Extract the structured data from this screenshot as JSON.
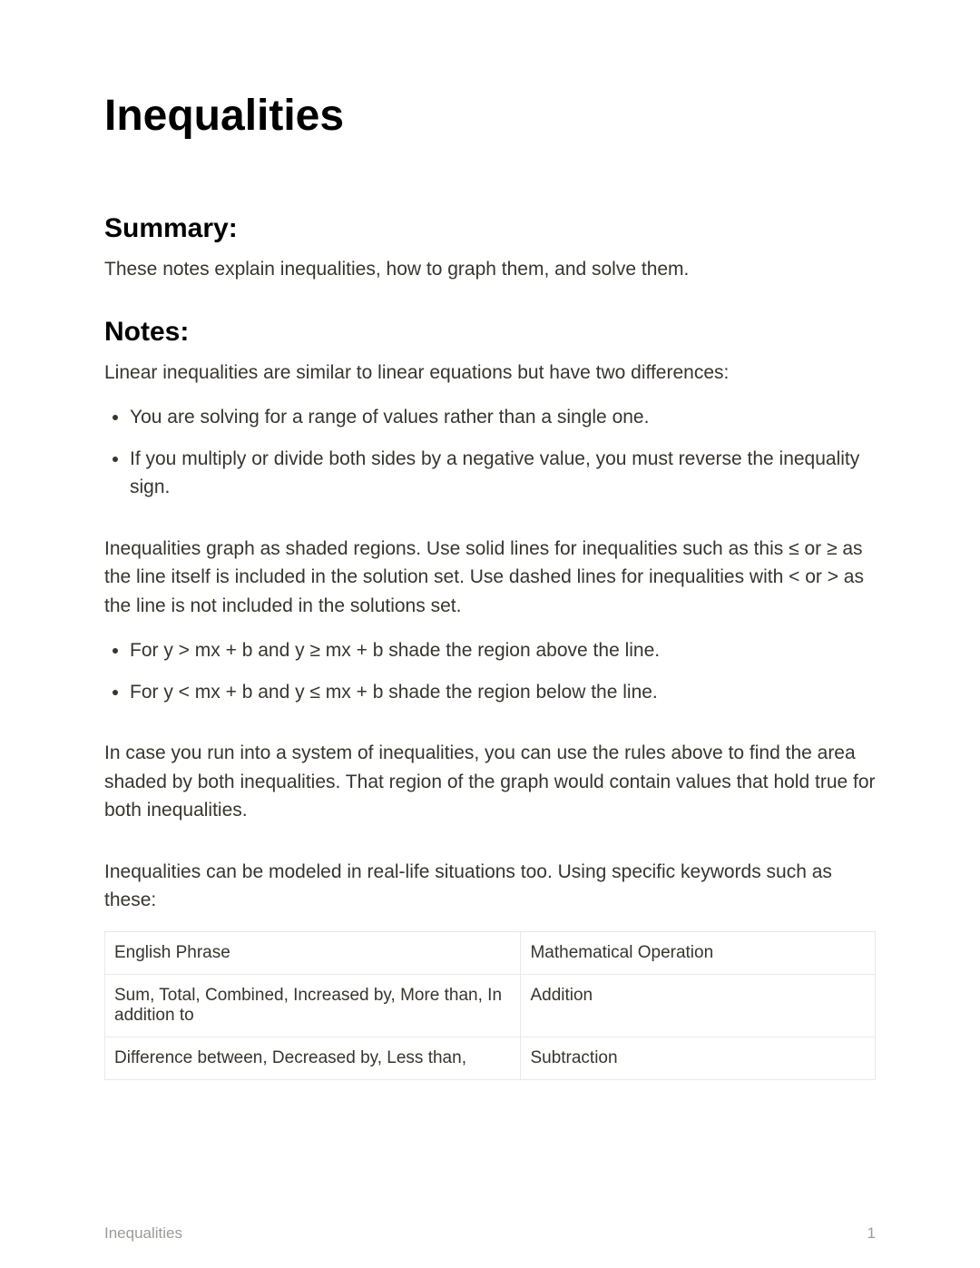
{
  "title": "Inequalities",
  "summary": {
    "heading": "Summary:",
    "text": "These notes explain inequalities, how to graph them, and solve them."
  },
  "notes": {
    "heading": "Notes:",
    "intro": "Linear inequalities are similar to linear equations but have two differences:",
    "differences": [
      "You are solving for a range of values rather than a single one.",
      "If you multiply or divide both sides by a negative value, you must reverse the inequality sign."
    ],
    "graphing": "Inequalities graph as shaded regions. Use solid lines for inequalities such as this ≤ or ≥ as the line itself is included in the solution set. Use dashed lines for inequalities with < or > as the line is not included in the solutions set.",
    "shading_rules": [
      "For y > mx + b and y ≥ mx + b  shade the region above the line.",
      "For y < mx + b and y ≤ mx + b shade the region below the line."
    ],
    "systems": "In case you run into a system of inequalities, you can use the rules above to find the area shaded by both inequalities. That region of the graph would contain values that hold true for both inequalities.",
    "keywords_intro": "Inequalities can be modeled in real-life situations too. Using specific keywords such as these:"
  },
  "table": {
    "columns": [
      "English Phrase",
      "Mathematical Operation"
    ],
    "rows": [
      [
        "Sum, Total, Combined, Increased by, More than, In addition to",
        "Addition"
      ],
      [
        "Difference between, Decreased by, Less than,",
        "Subtraction"
      ]
    ]
  },
  "footer": {
    "title": "Inequalities",
    "page": "1"
  },
  "style": {
    "background": "#ffffff",
    "text_color": "#37352f",
    "heading_color": "#000000",
    "border_color": "#e9e9e7",
    "footer_color": "#9b9a97",
    "h1_fontsize": 48,
    "h2_fontsize": 30,
    "body_fontsize": 21,
    "table_fontsize": 19,
    "footer_fontsize": 17
  }
}
